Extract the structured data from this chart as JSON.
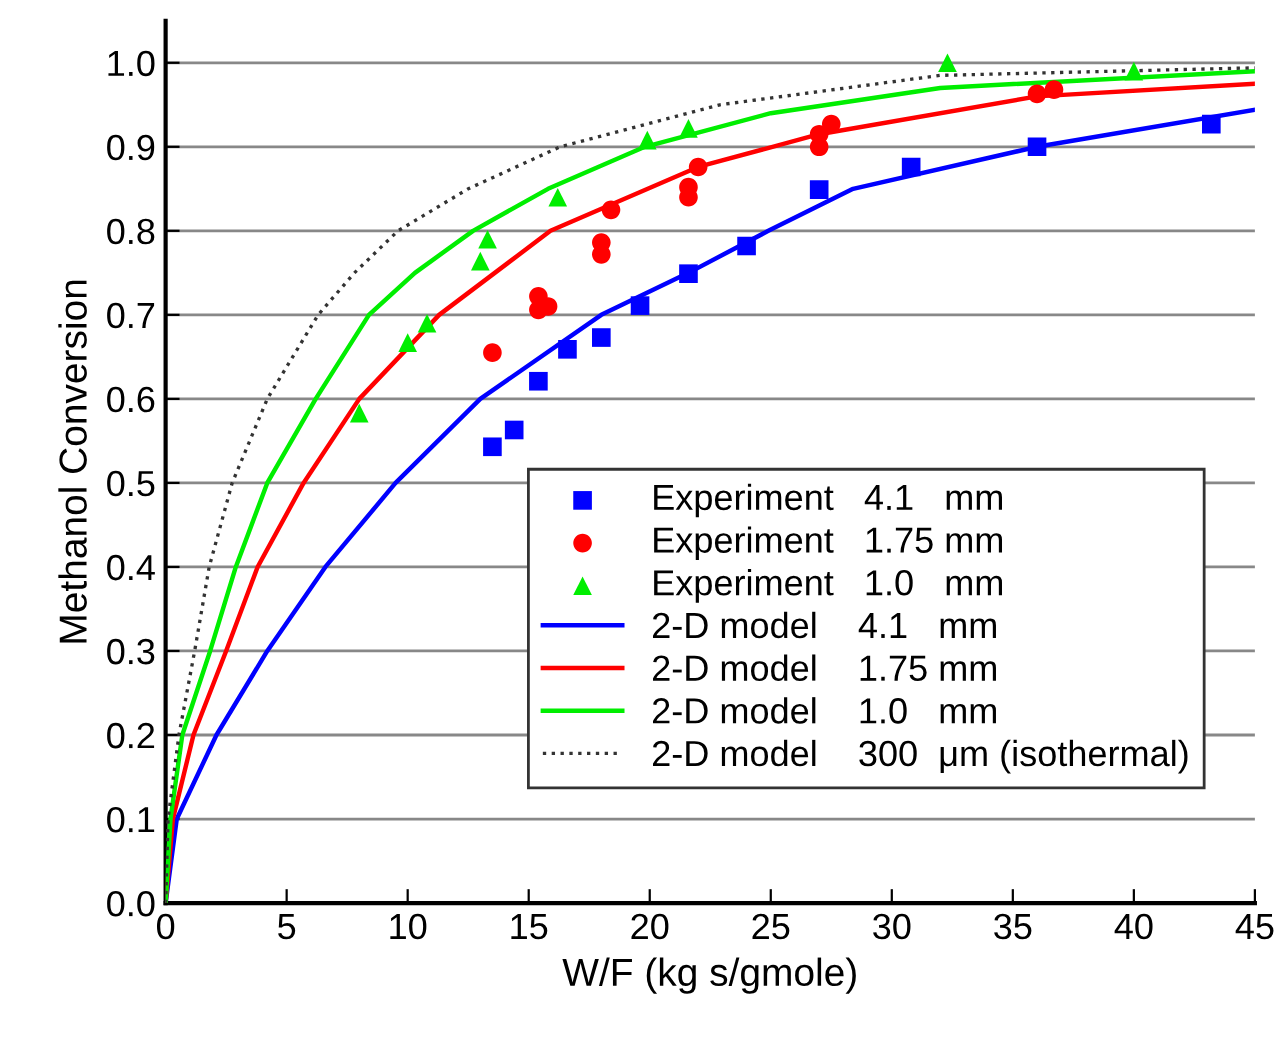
{
  "chart_data": {
    "type": "line",
    "xlabel": "W/F (kg s/gmole)",
    "ylabel": "Methanol Conversion",
    "xlim": [
      0,
      45
    ],
    "ylim": [
      0,
      1.05
    ],
    "xticks": [
      0,
      5,
      10,
      15,
      20,
      25,
      30,
      35,
      40,
      45
    ],
    "yticks": [
      {
        "value": 0,
        "label": "0.0"
      },
      0.1,
      0.2,
      0.3,
      0.4,
      0.5,
      0.6,
      0.7,
      0.8,
      0.9,
      {
        "value": 1,
        "label": "1.0"
      }
    ],
    "grid": "y",
    "legend": "bottom right",
    "series": [
      {
        "name": "Experiment   4.1   mm",
        "type": "scatter",
        "marker": "square",
        "color": "#0000ff",
        "x": [
          13.5,
          14.4,
          15.4,
          16.6,
          18.0,
          19.6,
          21.6,
          24.0,
          27.0,
          30.8,
          36.0,
          43.2
        ],
        "values": [
          0.543,
          0.563,
          0.621,
          0.659,
          0.673,
          0.711,
          0.749,
          0.782,
          0.849,
          0.876,
          0.9,
          0.927
        ]
      },
      {
        "name": "Experiment   1.75 mm",
        "type": "scatter",
        "marker": "circle",
        "color": "#ff0000",
        "x": [
          13.5,
          15.4,
          15.4,
          15.8,
          18.0,
          18.0,
          18.4,
          21.6,
          21.6,
          22.0,
          27.0,
          27.0,
          27.5,
          36.0,
          36.7
        ],
        "values": [
          0.655,
          0.722,
          0.706,
          0.71,
          0.786,
          0.772,
          0.825,
          0.852,
          0.84,
          0.876,
          0.9,
          0.915,
          0.927,
          0.963,
          0.968
        ]
      },
      {
        "name": "Experiment   1.0   mm",
        "type": "scatter",
        "marker": "triangle",
        "color": "#00ee00",
        "x": [
          8.0,
          10.0,
          10.8,
          13.0,
          13.3,
          16.2,
          19.9,
          21.6,
          32.3,
          40.0
        ],
        "values": [
          0.583,
          0.667,
          0.69,
          0.764,
          0.79,
          0.84,
          0.908,
          0.922,
          1.0,
          0.99
        ]
      },
      {
        "name": "2-D model    4.1   mm",
        "line_style": "solid",
        "color": "#0000ff",
        "x": [
          0,
          0.46,
          2.1,
          4.2,
          6.6,
          9.5,
          13.0,
          18.0,
          21.6,
          24.9,
          28.4,
          36.0,
          45.0
        ],
        "values": [
          0,
          0.1,
          0.2,
          0.3,
          0.4,
          0.5,
          0.6,
          0.7,
          0.75,
          0.8,
          0.85,
          0.9,
          0.944
        ]
      },
      {
        "name": "2-D model    1.75 mm",
        "line_style": "solid",
        "color": "#ff0000",
        "x": [
          0,
          0.3,
          1.15,
          2.5,
          3.8,
          5.7,
          8.0,
          11.3,
          15.9,
          22.0,
          27.0,
          36.0,
          45.0
        ],
        "values": [
          0,
          0.1,
          0.2,
          0.3,
          0.4,
          0.5,
          0.6,
          0.7,
          0.8,
          0.876,
          0.915,
          0.96,
          0.975
        ]
      },
      {
        "name": "2-D model    1.0   mm",
        "line_style": "solid",
        "color": "#00ee00",
        "x": [
          0,
          0.2,
          0.69,
          1.84,
          2.9,
          4.2,
          6.2,
          8.4,
          10.3,
          12.7,
          15.8,
          19.8,
          25.0,
          32.0,
          45.0
        ],
        "values": [
          0,
          0.1,
          0.2,
          0.3,
          0.4,
          0.5,
          0.6,
          0.7,
          0.75,
          0.8,
          0.85,
          0.9,
          0.94,
          0.97,
          0.99
        ]
      },
      {
        "name": "2-D model    300  μm (isothermal)",
        "line_style": "dotted",
        "color": "#333333",
        "x": [
          0,
          0.1,
          0.55,
          1.2,
          1.8,
          2.75,
          4.2,
          6.3,
          7.8,
          9.6,
          12.5,
          16.3,
          22.9,
          32.0,
          45.0
        ],
        "values": [
          0,
          0.1,
          0.2,
          0.3,
          0.4,
          0.5,
          0.6,
          0.7,
          0.75,
          0.8,
          0.85,
          0.9,
          0.95,
          0.985,
          0.994
        ]
      }
    ]
  }
}
